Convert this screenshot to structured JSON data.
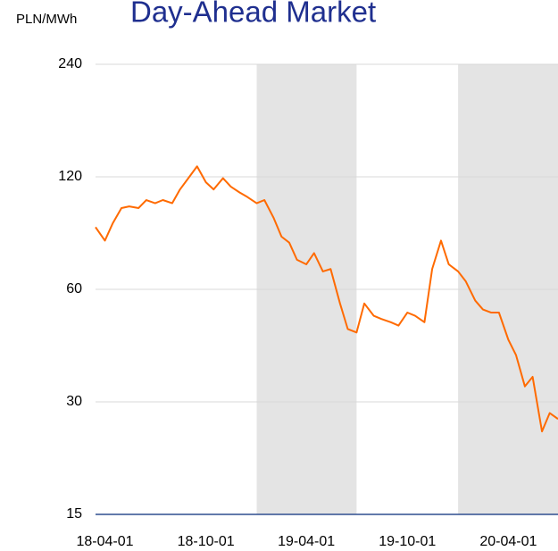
{
  "chart_data": {
    "type": "line",
    "title": "Day-Ahead Market",
    "y_unit": "PLN/MWh",
    "x": [
      "18-03-15",
      "18-04-01",
      "18-04-15",
      "18-05-01",
      "18-05-15",
      "18-06-01",
      "18-06-15",
      "18-07-01",
      "18-07-15",
      "18-08-01",
      "18-08-15",
      "18-09-01",
      "18-09-15",
      "18-10-01",
      "18-10-15",
      "18-11-01",
      "18-11-15",
      "18-12-01",
      "18-12-15",
      "19-01-01",
      "19-01-15",
      "19-02-01",
      "19-02-15",
      "19-03-01",
      "19-03-15",
      "19-04-01",
      "19-04-15",
      "19-05-01",
      "19-05-15",
      "19-06-01",
      "19-06-15",
      "19-07-01",
      "19-07-15",
      "19-08-01",
      "19-08-15",
      "19-09-01",
      "19-09-15",
      "19-10-01",
      "19-10-15",
      "19-11-01",
      "19-11-15",
      "19-12-01",
      "19-12-15",
      "20-01-01",
      "20-01-15",
      "20-02-01",
      "20-02-15",
      "20-03-01",
      "20-03-15",
      "20-04-01",
      "20-04-15",
      "20-05-01",
      "20-05-15",
      "20-06-01",
      "20-06-15",
      "20-06-30"
    ],
    "series": [
      {
        "name": "Day-Ahead Market",
        "color": "#ff6a00",
        "values": [
          88,
          81,
          90,
          99,
          100,
          99,
          104,
          102,
          104,
          102,
          111,
          120,
          128,
          116,
          111,
          119,
          113,
          109,
          106,
          102,
          104,
          93,
          83,
          80,
          72,
          70,
          75,
          67,
          68,
          55,
          47,
          46,
          55,
          51,
          50,
          49,
          48,
          52,
          51,
          49,
          68,
          81,
          70,
          67,
          63,
          56,
          53,
          52,
          52,
          44,
          40,
          33,
          35,
          25,
          28,
          27
        ]
      }
    ],
    "xlim": [
      "18-03-15",
      "20-06-30"
    ],
    "xticks": [
      "18-04-01",
      "18-10-01",
      "19-04-01",
      "19-10-01",
      "20-04-01"
    ],
    "ylim": [
      15,
      240
    ],
    "yticks": [
      15,
      30,
      60,
      120,
      240
    ],
    "log_y": true,
    "grid": true,
    "shaded": [
      [
        "19-01-01",
        "19-07-01"
      ],
      [
        "20-01-01",
        "20-06-30"
      ]
    ]
  }
}
